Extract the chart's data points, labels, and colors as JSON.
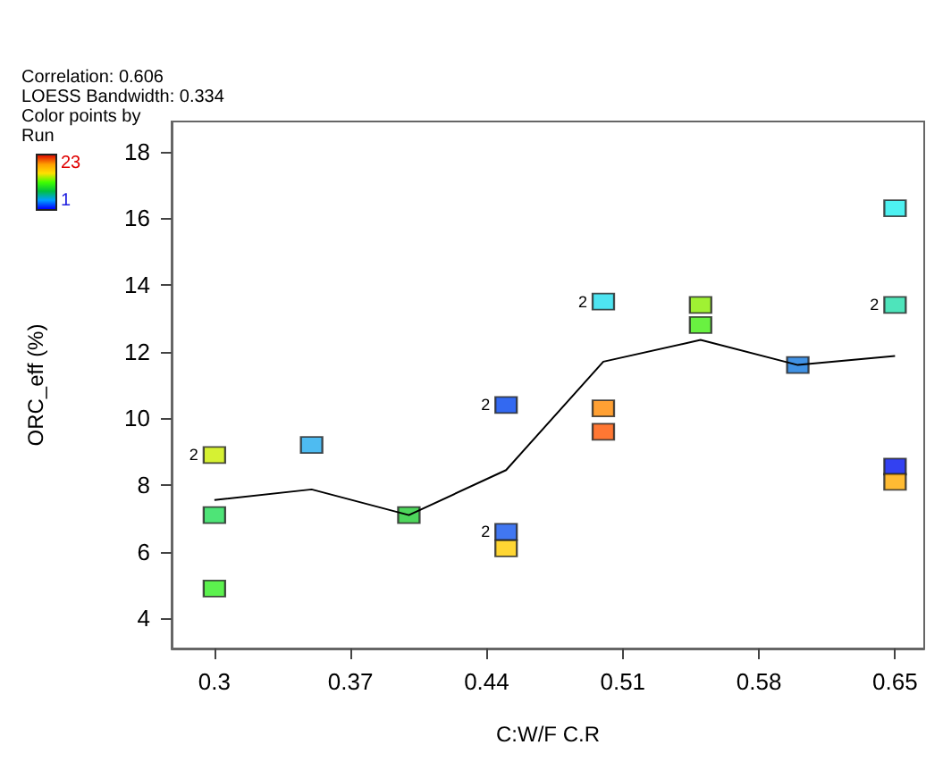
{
  "chart_data": {
    "type": "scatter",
    "xlabel": "C:W/F C.R",
    "ylabel": "ORC_eff (%)",
    "annotations": [
      "Correlation: 0.606",
      "LOESS Bandwidth: 0.334",
      "Color points by\nRun",
      {
        "text": "2",
        "x": 0.3,
        "y": 8.9
      },
      {
        "text": "2",
        "x": 0.45,
        "y": 10.4
      },
      {
        "text": "2",
        "x": 0.45,
        "y": 6.6
      },
      {
        "text": "2",
        "x": 0.5,
        "y": 13.5
      },
      {
        "text": "2",
        "x": 0.65,
        "y": 13.4
      }
    ],
    "xlim": [
      0.278,
      0.665
    ],
    "xticks": [
      0.3,
      0.37,
      0.44,
      0.51,
      0.58,
      0.65
    ],
    "ylim": [
      3.1,
      18.9
    ],
    "yticks": [
      4,
      6,
      8,
      10,
      12,
      14,
      16,
      18
    ],
    "clim": [
      1,
      23
    ],
    "cticks": [
      1,
      23
    ],
    "grid": false,
    "marker": "square",
    "series": [
      {
        "x": [
          0.3,
          0.3,
          0.3,
          0.35,
          0.4,
          0.45,
          0.45,
          0.45,
          0.5,
          0.5,
          0.5,
          0.55,
          0.55,
          0.6,
          0.65,
          0.65,
          0.65,
          0.65
        ],
        "values": [
          8.9,
          7.1,
          4.9,
          9.2,
          7.1,
          10.4,
          6.6,
          6.1,
          13.5,
          10.3,
          9.6,
          13.4,
          12.8,
          11.6,
          16.3,
          13.4,
          8.55,
          8.1
        ],
        "colors": [
          "#ccee00",
          "#22dd55",
          "#33ee22",
          "#22aaee",
          "#22cc33",
          "#0044ee",
          "#1155ee",
          "#ffcc00",
          "#22ddee",
          "#ff8800",
          "#ff5500",
          "#88ee00",
          "#44ee11",
          "#1177dd",
          "#22eeee",
          "#22ddaa",
          "#0011ee",
          "#ffaa00"
        ]
      },
      {
        "type": "line",
        "color": "#000000",
        "marker": "none",
        "line_style": "solid",
        "x": [
          0.3,
          0.35,
          0.4,
          0.45,
          0.5,
          0.55,
          0.6,
          0.65
        ],
        "values": [
          7.55,
          7.87,
          7.1,
          8.45,
          11.7,
          12.35,
          11.6,
          11.87
        ]
      }
    ]
  }
}
